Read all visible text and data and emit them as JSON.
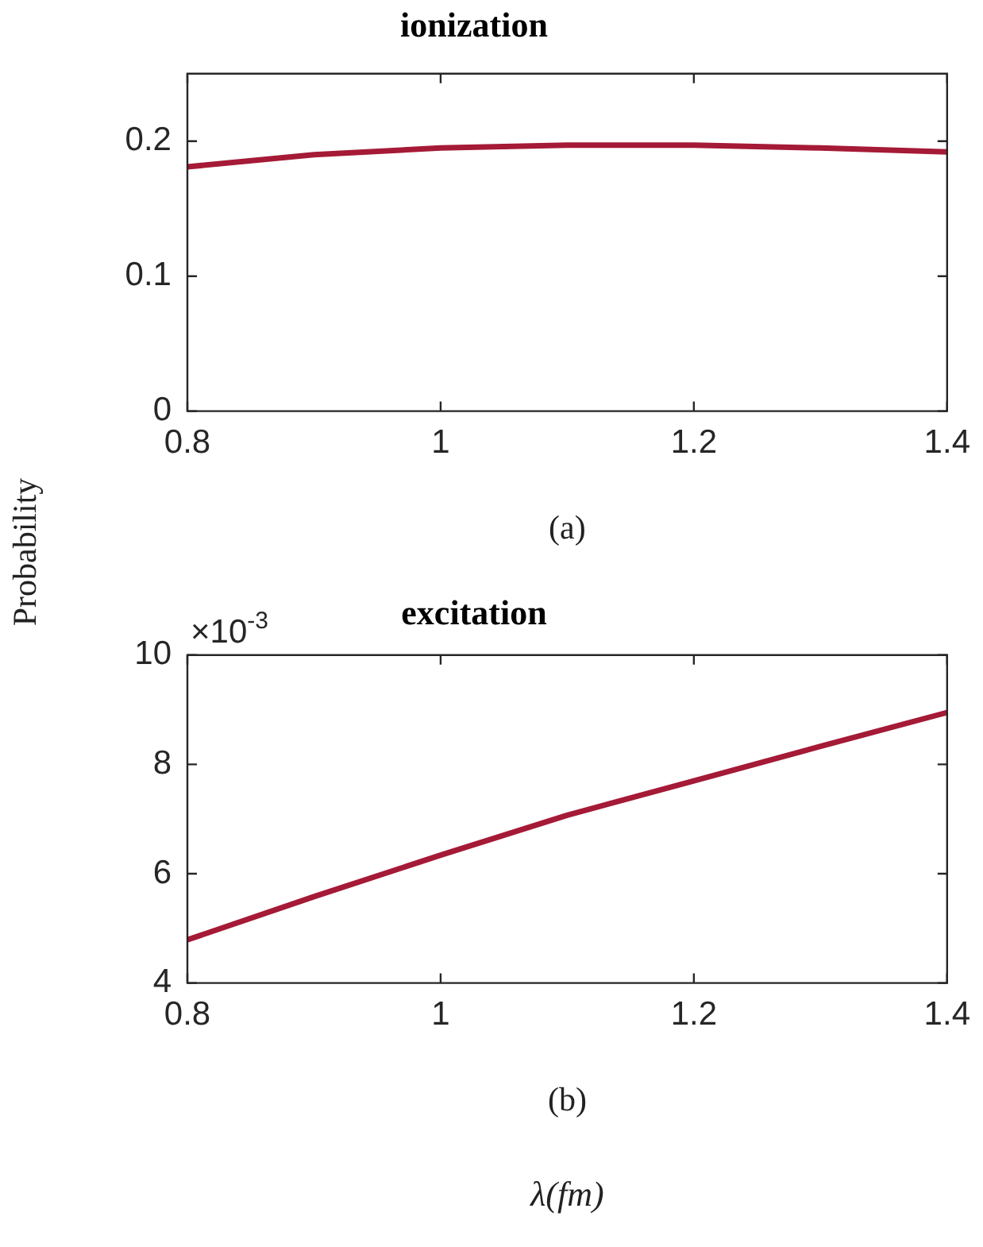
{
  "chart_data": [
    {
      "type": "line",
      "title": "ionization",
      "ylabel": "Probability",
      "x": [
        0.8,
        0.9,
        1.0,
        1.1,
        1.2,
        1.3,
        1.4
      ],
      "series": [
        {
          "color": "#a51a36",
          "values": [
            0.181,
            0.19,
            0.195,
            0.197,
            0.197,
            0.195,
            0.192
          ]
        }
      ],
      "xlim": [
        0.8,
        1.4
      ],
      "xticks": [
        0.8,
        1,
        1.2,
        1.4
      ],
      "ylim": [
        0,
        0.25
      ],
      "yticks": [
        0,
        0.1,
        0.2
      ],
      "grid": false,
      "legend": false,
      "marker": "none",
      "line_style": "solid",
      "annotations": [
        "(a)"
      ]
    },
    {
      "type": "line",
      "title": "excitation",
      "xlabel": "λ(fm)",
      "x": [
        0.8,
        0.9,
        1.0,
        1.1,
        1.2,
        1.3,
        1.4
      ],
      "series": [
        {
          "color": "#a51a36",
          "values": [
            4.79,
            5.58,
            6.34,
            7.07,
            7.7,
            8.33,
            8.95
          ]
        }
      ],
      "xlim": [
        0.8,
        1.4
      ],
      "xticks": [
        0.8,
        1,
        1.2,
        1.4
      ],
      "ylim": [
        4,
        10
      ],
      "yticks": [
        4,
        6,
        8,
        10
      ],
      "grid": false,
      "legend": false,
      "marker": "none",
      "line_style": "solid",
      "annotations": [
        "×10$^{-3}$",
        "(b)"
      ]
    }
  ]
}
